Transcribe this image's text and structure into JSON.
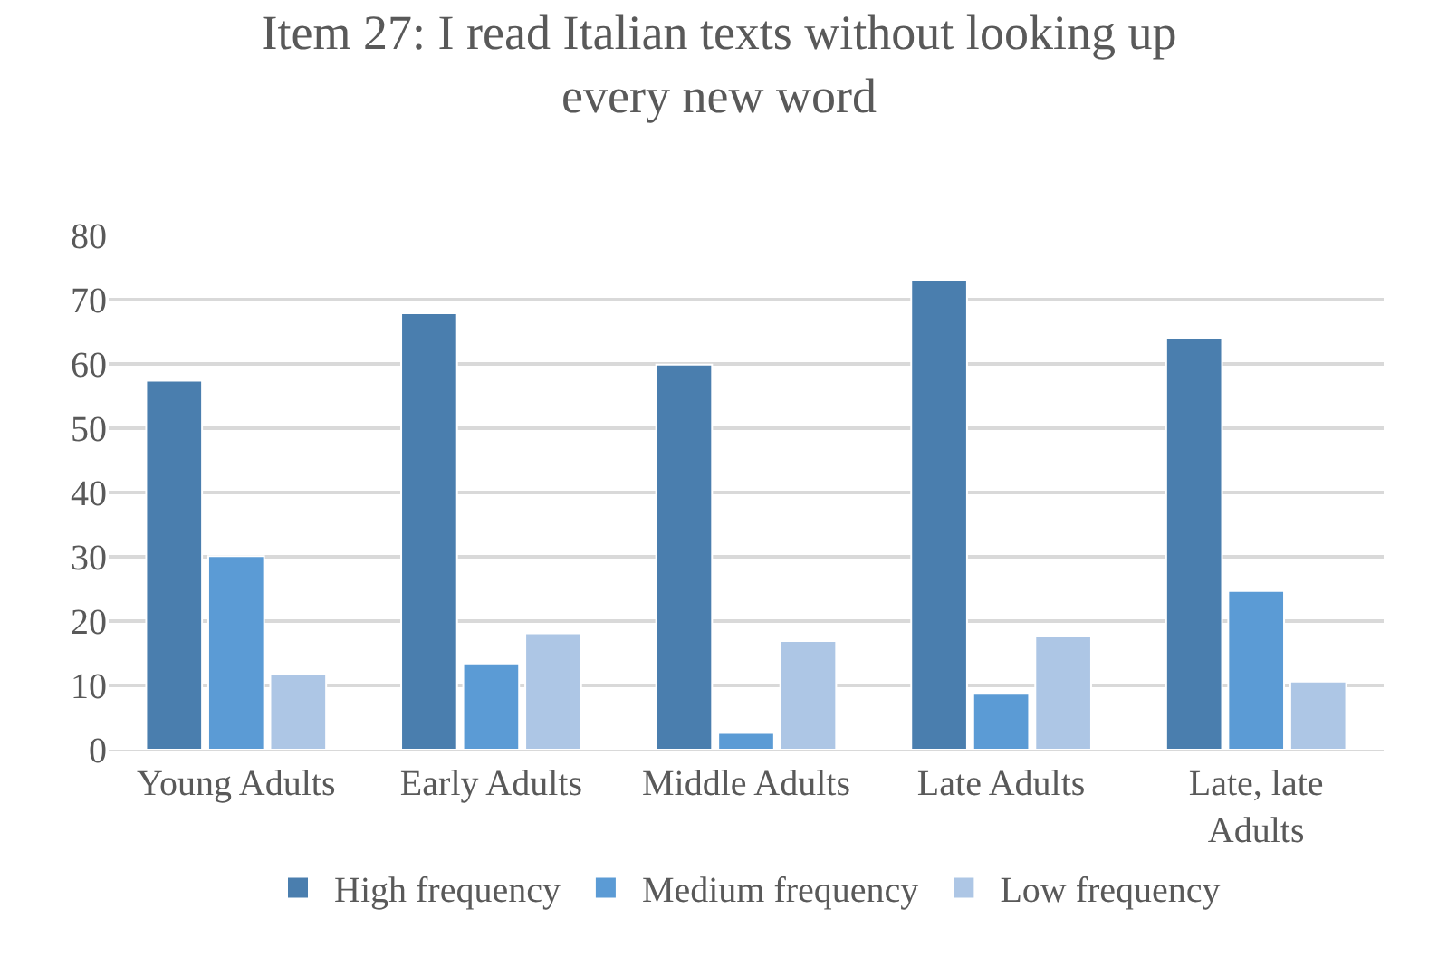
{
  "chart_data": {
    "type": "bar",
    "title": "Item 27: I read Italian texts without looking up every new word",
    "categories": [
      "Young Adults",
      "Early Adults",
      "Middle Adults",
      "Late Adults",
      "Late, late Adults"
    ],
    "series": [
      {
        "name": "High frequency",
        "color": "#4a7eae",
        "values": [
          57.4,
          67.9,
          59.9,
          73.1,
          64.1
        ]
      },
      {
        "name": "Medium frequency",
        "color": "#5b9bd5",
        "values": [
          30.1,
          13.4,
          2.6,
          8.7,
          24.7
        ]
      },
      {
        "name": "Low frequency",
        "color": "#adc6e5",
        "values": [
          11.8,
          18.1,
          16.9,
          17.6,
          10.6
        ]
      }
    ],
    "ylim": [
      0,
      80
    ],
    "yticks": [
      0,
      10,
      20,
      30,
      40,
      50,
      60,
      70,
      80
    ],
    "grid": "y",
    "legend": "bottom"
  }
}
